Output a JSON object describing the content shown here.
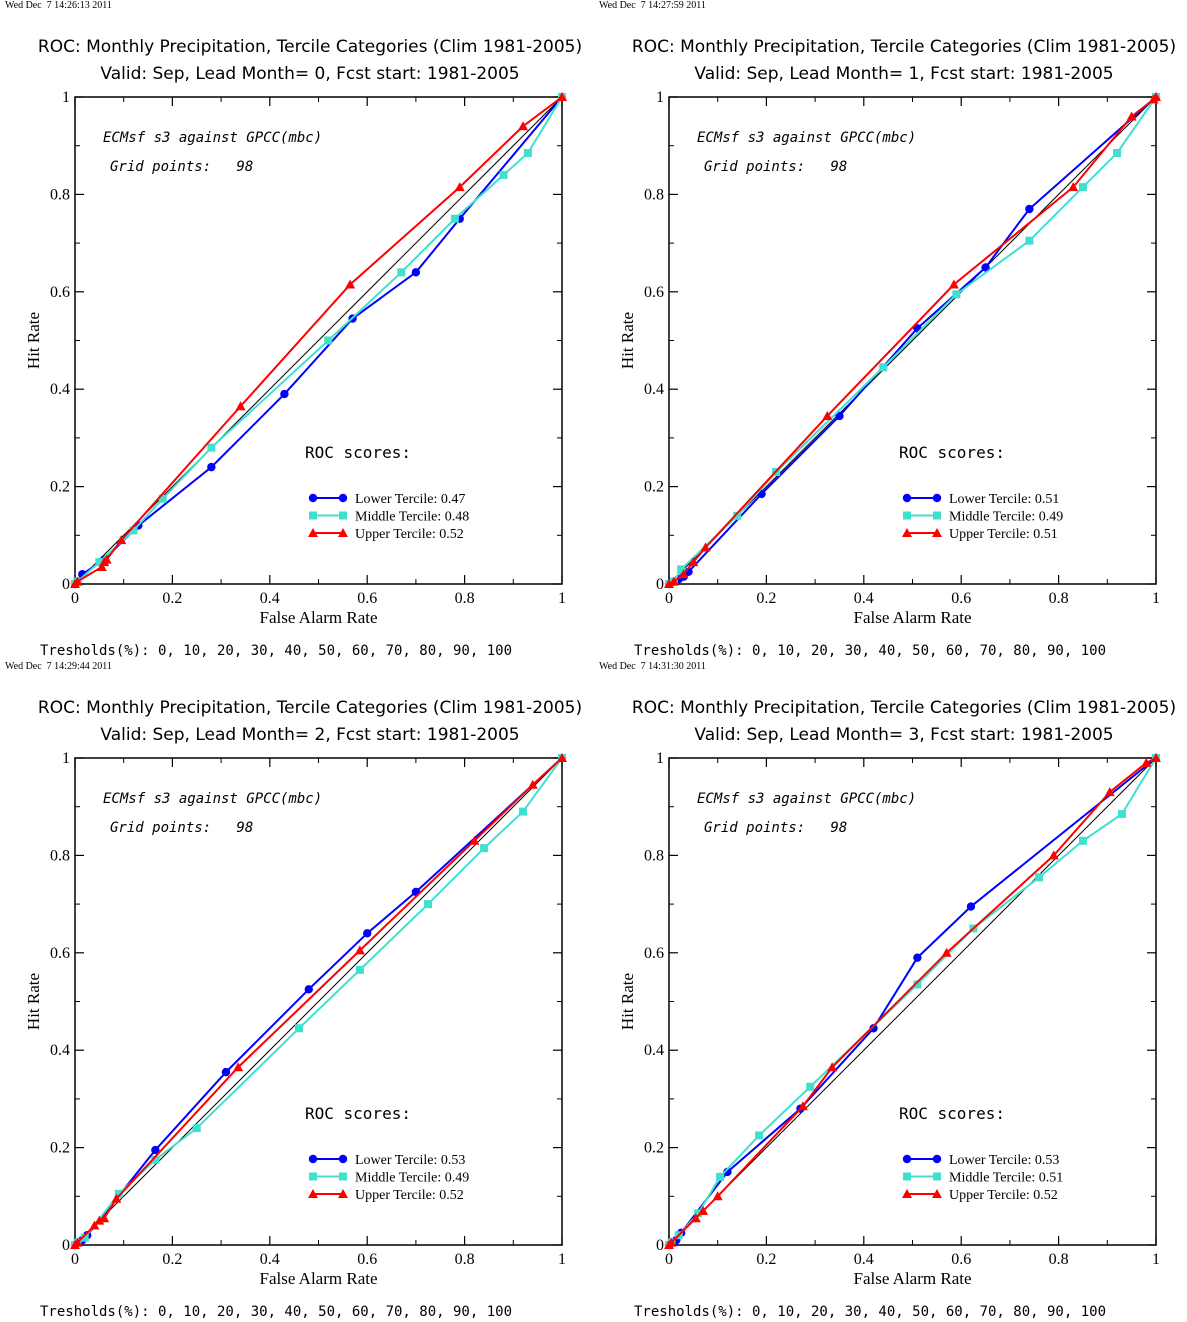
{
  "chart_data": [
    {
      "type": "line",
      "timestamp": "Wed Dec  7 14:26:13 2011",
      "title": "ROC: Monthly Precipitation, Tercile Categories (Clim 1981-2005)",
      "subtitle": "Valid: Sep, Lead Month= 0, Fcst start: 1981-2005",
      "xlabel": "False Alarm Rate",
      "ylabel": "Hit Rate",
      "xlim": [
        0,
        1
      ],
      "ylim": [
        0,
        1
      ],
      "xticks": [
        "0",
        "0.2",
        "0.4",
        "0.6",
        "0.8",
        "1"
      ],
      "yticks": [
        "0",
        "0.2",
        "0.4",
        "0.6",
        "0.8",
        "1"
      ],
      "annotation1": "ECMsf s3 against GPCC(mbc)",
      "annotation2": "Grid points:   98",
      "scores_heading": "ROC scores:",
      "thresholds": "Tresholds(%): 0, 10, 20, 30, 40, 50, 60, 70, 80, 90, 100",
      "series": [
        {
          "name": "Lower Tercile: 0.47",
          "color": "#0000ff",
          "marker": "circle",
          "points": [
            [
              0,
              0
            ],
            [
              0.005,
              0.005
            ],
            [
              0.015,
              0.02
            ],
            [
              0.06,
              0.05
            ],
            [
              0.13,
              0.12
            ],
            [
              0.28,
              0.24
            ],
            [
              0.43,
              0.39
            ],
            [
              0.57,
              0.545
            ],
            [
              0.7,
              0.64
            ],
            [
              0.79,
              0.75
            ],
            [
              1,
              1
            ]
          ]
        },
        {
          "name": "Middle Tercile: 0.48",
          "color": "#40e0d0",
          "marker": "square",
          "points": [
            [
              0,
              0
            ],
            [
              0.005,
              0.005
            ],
            [
              0.05,
              0.045
            ],
            [
              0.12,
              0.11
            ],
            [
              0.18,
              0.175
            ],
            [
              0.28,
              0.28
            ],
            [
              0.52,
              0.5
            ],
            [
              0.67,
              0.64
            ],
            [
              0.78,
              0.75
            ],
            [
              0.88,
              0.84
            ],
            [
              0.93,
              0.885
            ],
            [
              1,
              1
            ]
          ]
        },
        {
          "name": "Upper Tercile: 0.52",
          "color": "#ff0000",
          "marker": "triangle",
          "points": [
            [
              0,
              0
            ],
            [
              0.005,
              0.005
            ],
            [
              0.055,
              0.035
            ],
            [
              0.06,
              0.045
            ],
            [
              0.065,
              0.05
            ],
            [
              0.095,
              0.09
            ],
            [
              0.34,
              0.365
            ],
            [
              0.565,
              0.615
            ],
            [
              0.79,
              0.815
            ],
            [
              0.92,
              0.94
            ],
            [
              1,
              1
            ]
          ]
        }
      ]
    },
    {
      "type": "line",
      "timestamp": "Wed Dec  7 14:27:59 2011",
      "title": "ROC: Monthly Precipitation, Tercile Categories (Clim 1981-2005)",
      "subtitle": "Valid: Sep, Lead Month= 1, Fcst start: 1981-2005",
      "xlabel": "False Alarm Rate",
      "ylabel": "Hit Rate",
      "xlim": [
        0,
        1
      ],
      "ylim": [
        0,
        1
      ],
      "xticks": [
        "0",
        "0.2",
        "0.4",
        "0.6",
        "0.8",
        "1"
      ],
      "yticks": [
        "0",
        "0.2",
        "0.4",
        "0.6",
        "0.8",
        "1"
      ],
      "annotation1": "ECMsf s3 against GPCC(mbc)",
      "annotation2": "Grid points:   98",
      "scores_heading": "ROC scores:",
      "thresholds": "Tresholds(%): 0, 10, 20, 30, 40, 50, 60, 70, 80, 90, 100",
      "series": [
        {
          "name": "Lower Tercile: 0.51",
          "color": "#0000ff",
          "marker": "circle",
          "points": [
            [
              0,
              0
            ],
            [
              0.01,
              0.005
            ],
            [
              0.02,
              0.01
            ],
            [
              0.03,
              0.015
            ],
            [
              0.04,
              0.025
            ],
            [
              0.19,
              0.185
            ],
            [
              0.35,
              0.345
            ],
            [
              0.51,
              0.525
            ],
            [
              0.65,
              0.65
            ],
            [
              0.74,
              0.77
            ],
            [
              1,
              1
            ]
          ]
        },
        {
          "name": "Middle Tercile: 0.49",
          "color": "#40e0d0",
          "marker": "square",
          "points": [
            [
              0,
              0
            ],
            [
              0.01,
              0.005
            ],
            [
              0.025,
              0.03
            ],
            [
              0.14,
              0.14
            ],
            [
              0.22,
              0.23
            ],
            [
              0.44,
              0.445
            ],
            [
              0.59,
              0.595
            ],
            [
              0.74,
              0.705
            ],
            [
              0.85,
              0.815
            ],
            [
              0.92,
              0.885
            ],
            [
              1,
              1
            ]
          ]
        },
        {
          "name": "Upper Tercile: 0.51",
          "color": "#ff0000",
          "marker": "triangle",
          "points": [
            [
              0,
              0
            ],
            [
              0.01,
              0.005
            ],
            [
              0.03,
              0.02
            ],
            [
              0.05,
              0.045
            ],
            [
              0.075,
              0.075
            ],
            [
              0.325,
              0.345
            ],
            [
              0.585,
              0.615
            ],
            [
              0.83,
              0.815
            ],
            [
              0.95,
              0.96
            ],
            [
              0.995,
              0.995
            ],
            [
              1,
              1
            ]
          ]
        }
      ]
    },
    {
      "type": "line",
      "timestamp": "Wed Dec  7 14:29:44 2011",
      "title": "ROC: Monthly Precipitation, Tercile Categories (Clim 1981-2005)",
      "subtitle": "Valid: Sep, Lead Month= 2, Fcst start: 1981-2005",
      "xlabel": "False Alarm Rate",
      "ylabel": "Hit Rate",
      "xlim": [
        0,
        1
      ],
      "ylim": [
        0,
        1
      ],
      "xticks": [
        "0",
        "0.2",
        "0.4",
        "0.6",
        "0.8",
        "1"
      ],
      "yticks": [
        "0",
        "0.2",
        "0.4",
        "0.6",
        "0.8",
        "1"
      ],
      "annotation1": "ECMsf s3 against GPCC(mbc)",
      "annotation2": "Grid points:   98",
      "scores_heading": "ROC scores:",
      "thresholds": "Tresholds(%): 0, 10, 20, 30, 40, 50, 60, 70, 80, 90, 100",
      "series": [
        {
          "name": "Lower Tercile: 0.53",
          "color": "#0000ff",
          "marker": "circle",
          "points": [
            [
              0,
              0
            ],
            [
              0.005,
              0.005
            ],
            [
              0.015,
              0.01
            ],
            [
              0.025,
              0.02
            ],
            [
              0.165,
              0.195
            ],
            [
              0.31,
              0.355
            ],
            [
              0.48,
              0.525
            ],
            [
              0.6,
              0.64
            ],
            [
              0.7,
              0.725
            ],
            [
              1,
              1
            ]
          ]
        },
        {
          "name": "Middle Tercile: 0.49",
          "color": "#40e0d0",
          "marker": "square",
          "points": [
            [
              0,
              0
            ],
            [
              0.005,
              0.005
            ],
            [
              0.02,
              0.015
            ],
            [
              0.09,
              0.105
            ],
            [
              0.165,
              0.175
            ],
            [
              0.25,
              0.24
            ],
            [
              0.46,
              0.445
            ],
            [
              0.585,
              0.565
            ],
            [
              0.725,
              0.7
            ],
            [
              0.84,
              0.815
            ],
            [
              0.92,
              0.89
            ],
            [
              1,
              1
            ]
          ]
        },
        {
          "name": "Upper Tercile: 0.52",
          "color": "#ff0000",
          "marker": "triangle",
          "points": [
            [
              0,
              0
            ],
            [
              0.005,
              0.005
            ],
            [
              0.04,
              0.04
            ],
            [
              0.05,
              0.05
            ],
            [
              0.06,
              0.055
            ],
            [
              0.085,
              0.095
            ],
            [
              0.335,
              0.365
            ],
            [
              0.585,
              0.605
            ],
            [
              0.82,
              0.83
            ],
            [
              0.94,
              0.945
            ],
            [
              1,
              1
            ]
          ]
        }
      ]
    },
    {
      "type": "line",
      "timestamp": "Wed Dec  7 14:31:30 2011",
      "title": "ROC: Monthly Precipitation, Tercile Categories (Clim 1981-2005)",
      "subtitle": "Valid: Sep, Lead Month= 3, Fcst start: 1981-2005",
      "xlabel": "False Alarm Rate",
      "ylabel": "Hit Rate",
      "xlim": [
        0,
        1
      ],
      "ylim": [
        0,
        1
      ],
      "xticks": [
        "0",
        "0.2",
        "0.4",
        "0.6",
        "0.8",
        "1"
      ],
      "yticks": [
        "0",
        "0.2",
        "0.4",
        "0.6",
        "0.8",
        "1"
      ],
      "annotation1": "ECMsf s3 against GPCC(mbc)",
      "annotation2": "Grid points:   98",
      "scores_heading": "ROC scores:",
      "thresholds": "Tresholds(%): 0, 10, 20, 30, 40, 50, 60, 70, 80, 90, 100",
      "series": [
        {
          "name": "Lower Tercile: 0.53",
          "color": "#0000ff",
          "marker": "circle",
          "points": [
            [
              0,
              0
            ],
            [
              0.005,
              0.005
            ],
            [
              0.015,
              0.01
            ],
            [
              0.025,
              0.025
            ],
            [
              0.12,
              0.15
            ],
            [
              0.27,
              0.28
            ],
            [
              0.42,
              0.445
            ],
            [
              0.51,
              0.59
            ],
            [
              0.62,
              0.695
            ],
            [
              1,
              1
            ]
          ]
        },
        {
          "name": "Middle Tercile: 0.51",
          "color": "#40e0d0",
          "marker": "square",
          "points": [
            [
              0,
              0
            ],
            [
              0.005,
              0.005
            ],
            [
              0.02,
              0.02
            ],
            [
              0.06,
              0.065
            ],
            [
              0.105,
              0.14
            ],
            [
              0.185,
              0.225
            ],
            [
              0.29,
              0.325
            ],
            [
              0.51,
              0.535
            ],
            [
              0.625,
              0.65
            ],
            [
              0.76,
              0.755
            ],
            [
              0.85,
              0.83
            ],
            [
              0.93,
              0.885
            ],
            [
              1,
              1
            ]
          ]
        },
        {
          "name": "Upper Tercile: 0.52",
          "color": "#ff0000",
          "marker": "triangle",
          "points": [
            [
              0,
              0
            ],
            [
              0.005,
              0.005
            ],
            [
              0.055,
              0.055
            ],
            [
              0.07,
              0.07
            ],
            [
              0.1,
              0.1
            ],
            [
              0.275,
              0.285
            ],
            [
              0.335,
              0.365
            ],
            [
              0.57,
              0.6
            ],
            [
              0.79,
              0.8
            ],
            [
              0.905,
              0.93
            ],
            [
              0.98,
              0.99
            ],
            [
              1,
              1
            ]
          ]
        }
      ]
    }
  ]
}
